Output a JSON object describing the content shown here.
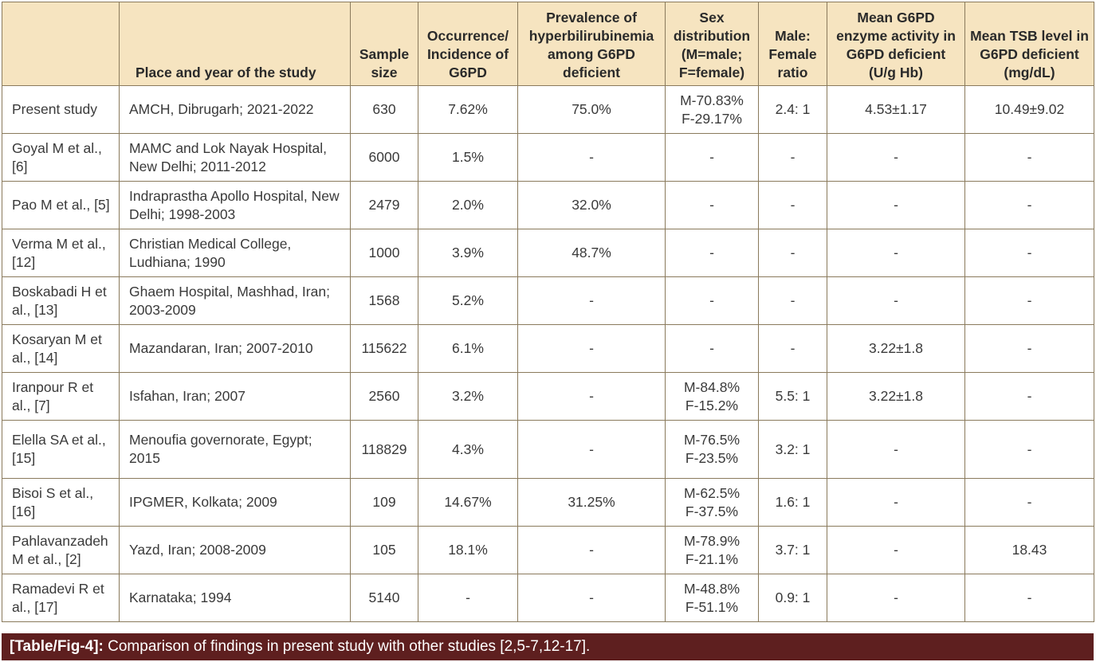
{
  "table": {
    "headers": [
      "",
      "Place and year of the study",
      "Sample size",
      "Occurrence/ Incidence of G6PD",
      "Prevalence of hyperbilirubinemia among G6PD deficient",
      "Sex distribution (M=male; F=female)",
      "Male: Female ratio",
      "Mean G6PD enzyme activity in G6PD deficient (U/g Hb)",
      "Mean TSB level in G6PD deficient (mg/dL)"
    ],
    "rows": [
      {
        "study": "Present study",
        "place": "AMCH, Dibrugarh; 2021-2022",
        "sample": "630",
        "occurrence": "7.62%",
        "prevalence": "75.0%",
        "sex_m": "M-70.83%",
        "sex_f": "F-29.17%",
        "ratio": "2.4: 1",
        "enzyme": "4.53±1.17",
        "tsb": "10.49±9.02"
      },
      {
        "study": "Goyal M et al., [6]",
        "place": "MAMC and Lok Nayak Hospital, New Delhi; 2011-2012",
        "sample": "6000",
        "occurrence": "1.5%",
        "prevalence": "-",
        "sex_m": "-",
        "sex_f": "",
        "ratio": "-",
        "enzyme": "-",
        "tsb": "-"
      },
      {
        "study": "Pao M et al., [5]",
        "place": "Indraprastha Apollo Hospital, New Delhi; 1998-2003",
        "sample": "2479",
        "occurrence": "2.0%",
        "prevalence": "32.0%",
        "sex_m": "-",
        "sex_f": "",
        "ratio": "-",
        "enzyme": "-",
        "tsb": "-"
      },
      {
        "study": "Verma M et al., [12]",
        "place": "Christian Medical College, Ludhiana; 1990",
        "sample": "1000",
        "occurrence": "3.9%",
        "prevalence": "48.7%",
        "sex_m": "-",
        "sex_f": "",
        "ratio": "-",
        "enzyme": "-",
        "tsb": "-"
      },
      {
        "study": "Boskabadi H et al., [13]",
        "place": "Ghaem Hospital, Mashhad, Iran; 2003-2009",
        "sample": "1568",
        "occurrence": "5.2%",
        "prevalence": "-",
        "sex_m": "-",
        "sex_f": "",
        "ratio": "-",
        "enzyme": "-",
        "tsb": "-"
      },
      {
        "study": "Kosaryan M et al., [14]",
        "place": "Mazandaran, Iran; 2007-2010",
        "sample": "115622",
        "occurrence": "6.1%",
        "prevalence": "-",
        "sex_m": "-",
        "sex_f": "",
        "ratio": "-",
        "enzyme": "3.22±1.8",
        "tsb": "-"
      },
      {
        "study": "Iranpour R et al., [7]",
        "place": "Isfahan, Iran; 2007",
        "sample": "2560",
        "occurrence": "3.2%",
        "prevalence": "-",
        "sex_m": "M-84.8%",
        "sex_f": "F-15.2%",
        "ratio": "5.5: 1",
        "enzyme": "3.22±1.8",
        "tsb": "-"
      },
      {
        "study": "Elella SA et al., [15]",
        "place": "Menoufia governorate, Egypt; 2015",
        "sample": "118829",
        "occurrence": "4.3%",
        "prevalence": "-",
        "sex_m": "M-76.5%",
        "sex_f": "F-23.5%",
        "ratio": "3.2: 1",
        "enzyme": "-",
        "tsb": "-"
      },
      {
        "study": "Bisoi S et al., [16]",
        "place": "IPGMER, Kolkata; 2009",
        "sample": "109",
        "occurrence": "14.67%",
        "prevalence": "31.25%",
        "sex_m": "M-62.5%",
        "sex_f": "F-37.5%",
        "ratio": "1.6: 1",
        "enzyme": "-",
        "tsb": "-"
      },
      {
        "study": "Pahlavanzadeh M et al., [2]",
        "place": "Yazd, Iran; 2008-2009",
        "sample": "105",
        "occurrence": "18.1%",
        "prevalence": "-",
        "sex_m": "M-78.9%",
        "sex_f": "F-21.1%",
        "ratio": "3.7: 1",
        "enzyme": "-",
        "tsb": "18.43"
      },
      {
        "study": "Ramadevi R et al., [17]",
        "place": "Karnataka; 1994",
        "sample": "5140",
        "occurrence": "-",
        "prevalence": "-",
        "sex_m": "M-48.8%",
        "sex_f": "F-51.1%",
        "ratio": "0.9: 1",
        "enzyme": "-",
        "tsb": "-"
      }
    ]
  },
  "caption": {
    "label": "[Table/Fig-4]:",
    "text": "Comparison of findings in present study with other studies [2,5-7,12-17]."
  },
  "colors": {
    "header_bg": "#f6e4c0",
    "caption_bg": "#5e1f1f",
    "border": "#8a7a5c"
  }
}
